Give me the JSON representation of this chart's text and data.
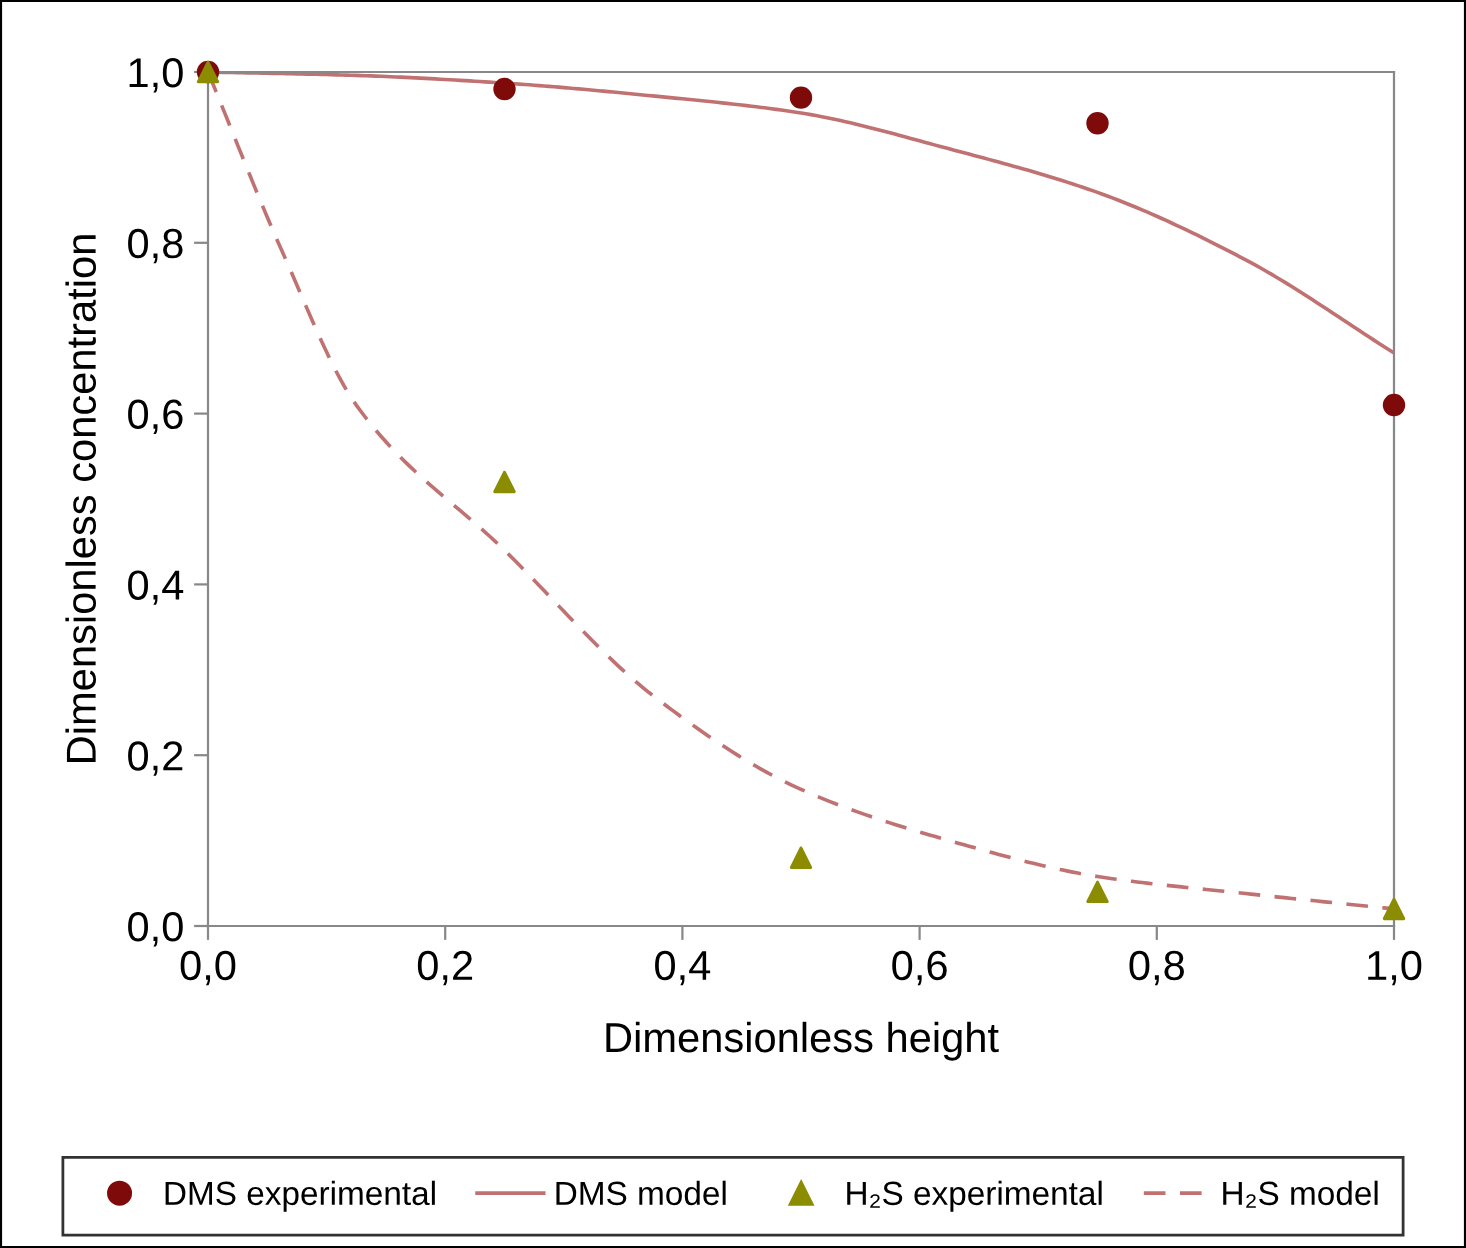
{
  "chart_data": {
    "type": "scatter",
    "xlabel": "Dimensionless height",
    "ylabel": "Dimensionless concentration",
    "xlim": [
      0,
      1
    ],
    "ylim": [
      0,
      1
    ],
    "xticks": [
      {
        "value": 0,
        "label": "0,0"
      },
      {
        "value": 0.2,
        "label": "0,2"
      },
      {
        "value": 0.4,
        "label": "0,4"
      },
      {
        "value": 0.6,
        "label": "0,6"
      },
      {
        "value": 0.8,
        "label": "0,8"
      },
      {
        "value": 1,
        "label": "1,0"
      }
    ],
    "yticks": [
      {
        "value": 0,
        "label": "0,0"
      },
      {
        "value": 0.2,
        "label": "0,2"
      },
      {
        "value": 0.4,
        "label": "0,4"
      },
      {
        "value": 0.6,
        "label": "0,6"
      },
      {
        "value": 0.8,
        "label": "0,8"
      },
      {
        "value": 1,
        "label": "1,0"
      }
    ],
    "grid": false,
    "legend": "bottom",
    "series": [
      {
        "name": "DMS experimental",
        "marker": "circle",
        "color": "#7f0a0a",
        "x": [
          0,
          0.25,
          0.5,
          0.75,
          1
        ],
        "values": [
          1.0,
          0.98,
          0.97,
          0.94,
          0.61
        ]
      },
      {
        "name": "DMS model",
        "type": "line",
        "line_style": "solid",
        "marker": "none",
        "color": "#c07272",
        "x": [
          0,
          0.125,
          0.25,
          0.375,
          0.5,
          0.625,
          0.75,
          0.875,
          1
        ],
        "values": [
          1.0,
          0.996,
          0.987,
          0.972,
          0.952,
          0.91,
          0.859,
          0.78,
          0.671
        ]
      },
      {
        "name": "H₂S experimental",
        "marker": "triangle",
        "color": "#8c8c00",
        "x": [
          0,
          0.25,
          0.5,
          0.75,
          1
        ],
        "values": [
          1.0,
          0.52,
          0.08,
          0.04,
          0.02
        ]
      },
      {
        "name": "H₂S model",
        "type": "line",
        "line_style": "dashed",
        "marker": "none",
        "color": "#c07272",
        "x": [
          0,
          0.0625,
          0.125,
          0.25,
          0.375,
          0.5,
          0.625,
          0.75,
          0.875,
          1
        ],
        "values": [
          1.0,
          0.79,
          0.61,
          0.44,
          0.27,
          0.16,
          0.1,
          0.058,
          0.038,
          0.02
        ]
      }
    ]
  }
}
